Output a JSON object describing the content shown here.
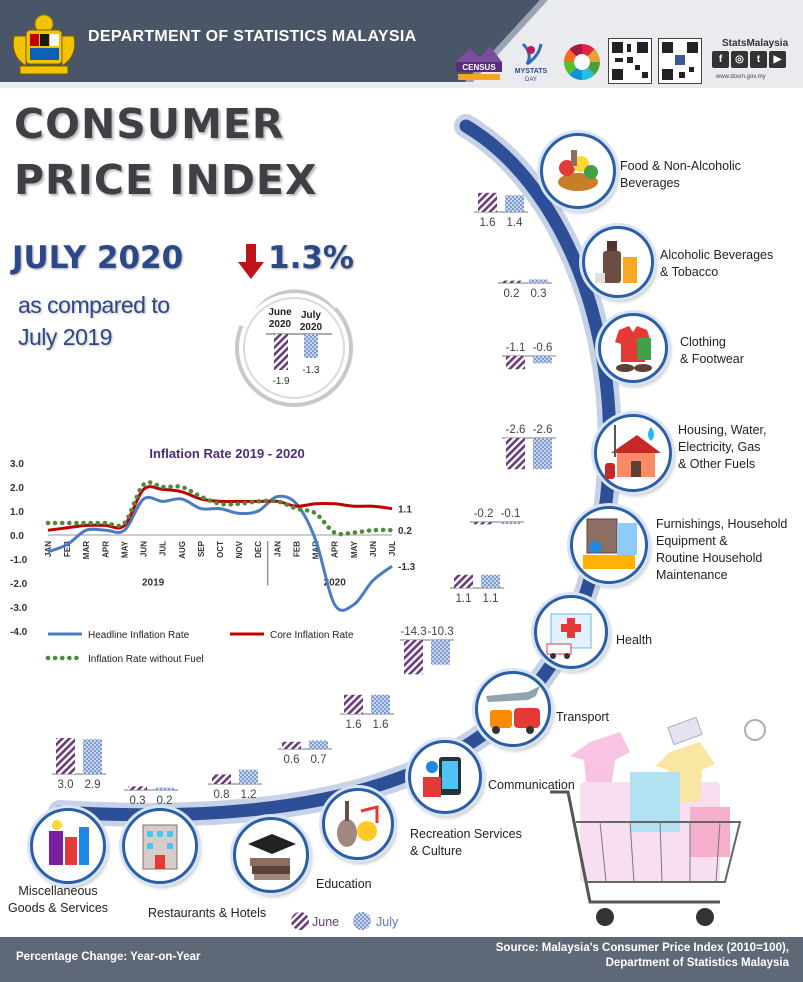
{
  "header": {
    "department": "DEPARTMENT OF STATISTICS MALAYSIA",
    "census_label": "CENSUS",
    "mystats_label": "MYSTATS",
    "mystats_sub": "DAY",
    "brand_name": "StatsMalaysia",
    "brand_url": "www.dosm.gov.my"
  },
  "title": {
    "line1": "CONSUMER",
    "line2": "PRICE INDEX",
    "month": "JULY 2020",
    "change": "1.3%",
    "compared_line1": "as compared to",
    "compared_line2": "July 2019"
  },
  "headline_compare": {
    "june_label": "June\n2020",
    "july_label": "July\n2020",
    "june_value": "-1.9",
    "july_value": "-1.3"
  },
  "chart_data": [
    {
      "type": "line",
      "title": "Inflation Rate 2019 - 2020",
      "x": [
        "JAN",
        "FEB",
        "MAR",
        "APR",
        "MAY",
        "JUN",
        "JUL",
        "AUG",
        "SEP",
        "OCT",
        "NOV",
        "DEC",
        "JAN",
        "FEB",
        "MAR",
        "APR",
        "MAY",
        "JUN",
        "JUL"
      ],
      "year_groups": [
        "2019",
        "2020"
      ],
      "ylim": [
        -4.0,
        3.0
      ],
      "yticks": [
        "3.0",
        "2.0",
        "1.0",
        "0.0",
        "-1.0",
        "-2.0",
        "-3.0",
        "-4.0"
      ],
      "series": [
        {
          "name": "Headline Inflation Rate",
          "color": "#4a7cc4",
          "style": "solid",
          "values": [
            -0.7,
            -0.4,
            0.2,
            0.2,
            0.2,
            1.5,
            1.4,
            1.5,
            1.1,
            1.1,
            0.9,
            1.0,
            1.6,
            1.3,
            -0.2,
            -2.9,
            -2.9,
            -1.9,
            -1.3
          ],
          "end_label": "-1.3"
        },
        {
          "name": "Core Inflation Rate",
          "color": "#c00000",
          "style": "solid",
          "values": [
            0.2,
            0.3,
            0.4,
            0.4,
            0.4,
            1.9,
            1.9,
            1.8,
            1.5,
            1.4,
            1.4,
            1.4,
            1.4,
            1.2,
            1.3,
            1.3,
            1.2,
            1.2,
            1.1
          ],
          "end_label": "1.1"
        },
        {
          "name": "Inflation Rate without Fuel",
          "color": "#4b8a3a",
          "style": "dotted",
          "values": [
            0.5,
            0.5,
            0.5,
            0.5,
            0.5,
            2.1,
            2.0,
            2.0,
            1.6,
            1.3,
            1.3,
            1.4,
            1.4,
            1.1,
            0.9,
            0.1,
            0.1,
            0.2,
            0.2
          ],
          "end_label": "0.2"
        }
      ]
    },
    {
      "type": "bar",
      "title": "",
      "legend": [
        "June",
        "July"
      ],
      "series_names": [
        "June",
        "July"
      ],
      "categories": [
        "Food & Non-Alcoholic Beverages",
        "Alcoholic Beverages & Tobacco",
        "Clothing & Footwear",
        "Housing, Water, Electricity, Gas & Other Fuels",
        "Furnishings, Household Equipment & Routine Household Maintenance",
        "Health",
        "Transport",
        "Communication",
        "Recreation Services & Culture",
        "Education",
        "Restaurants & Hotels",
        "Miscellaneous Goods & Services"
      ],
      "june": [
        1.6,
        0.2,
        -1.1,
        -2.6,
        -0.2,
        1.1,
        -14.3,
        1.6,
        0.6,
        0.8,
        0.3,
        3.0
      ],
      "july": [
        1.4,
        0.3,
        -0.6,
        -2.6,
        -0.1,
        1.1,
        -10.3,
        1.6,
        0.7,
        1.2,
        0.2,
        2.9
      ],
      "june_labels": [
        "1.6",
        "0.2",
        "-1.1",
        "-2.6",
        "-0.2",
        "1.1",
        "-14.3",
        "1.6",
        "0.6",
        "0.8",
        "0.3",
        "3.0"
      ],
      "july_labels": [
        "1.4",
        "0.3",
        "-0.6",
        "-2.6",
        "-0.1",
        "1.1",
        "-10.3",
        "1.6",
        "0.7",
        "1.2",
        "0.2",
        "2.9"
      ]
    }
  ],
  "categories_text": {
    "food": [
      "Food &  Non-Alcoholic",
      "Beverages"
    ],
    "alcohol": [
      "Alcoholic Beverages",
      "& Tobacco"
    ],
    "clothing": [
      "Clothing",
      "& Footwear"
    ],
    "housing": [
      "Housing, Water,",
      "Electricity, Gas",
      "& Other Fuels"
    ],
    "furnishing": [
      "Furnishings, Household",
      "Equipment &",
      "Routine Household",
      "Maintenance"
    ],
    "health": [
      "Health"
    ],
    "transport": [
      "Transport"
    ],
    "communication": [
      "Communication"
    ],
    "recreation": [
      "Recreation Services",
      "& Culture"
    ],
    "education": [
      "Education"
    ],
    "restaurants": [
      "Restaurants & Hotels"
    ],
    "misc": [
      "Miscellaneous",
      "Goods & Services"
    ]
  },
  "legend": {
    "june": "June",
    "july": "July"
  },
  "footer": {
    "left": "Percentage Change: Year-on-Year",
    "right_line1": "Source: Malaysia's Consumer Price Index (2010=100),",
    "right_line2": "Department of Statistics Malaysia"
  },
  "colors": {
    "navy": "#2d4889",
    "june_bar": "#6b3a7a",
    "july_bar": "#7e9ad0",
    "arc": "#2c4f97",
    "footer": "#5f6877"
  },
  "icons": [
    "crest-icon",
    "census-logo-icon",
    "mystats-logo-icon",
    "sdg-wheel-icon",
    "qr-code-icon",
    "facebook-icon",
    "instagram-icon",
    "twitter-icon",
    "youtube-icon",
    "down-arrow-icon",
    "shopping-cart-icon"
  ]
}
